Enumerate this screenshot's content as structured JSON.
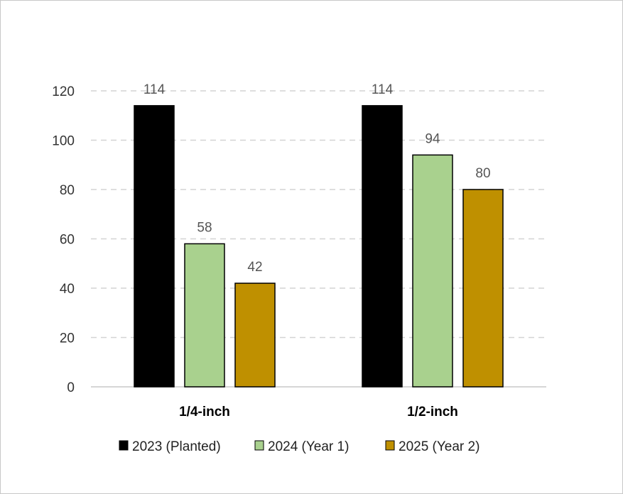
{
  "chart_data": {
    "type": "bar",
    "title": "",
    "xlabel": "",
    "ylabel": "",
    "categories": [
      "1/4-inch",
      "1/2-inch"
    ],
    "series": [
      {
        "name": "2023 (Planted)",
        "color": "#000000",
        "values": [
          114,
          114
        ]
      },
      {
        "name": "2024 (Year 1)",
        "color": "#a9d18e",
        "values": [
          58,
          94
        ]
      },
      {
        "name": "2025 (Year 2)",
        "color": "#bf9000",
        "values": [
          42,
          80
        ]
      }
    ],
    "ylim": [
      0,
      120
    ],
    "yticks": [
      0,
      20,
      40,
      60,
      80,
      100,
      120
    ],
    "grid": true,
    "legend_position": "bottom",
    "data_labels": true
  }
}
